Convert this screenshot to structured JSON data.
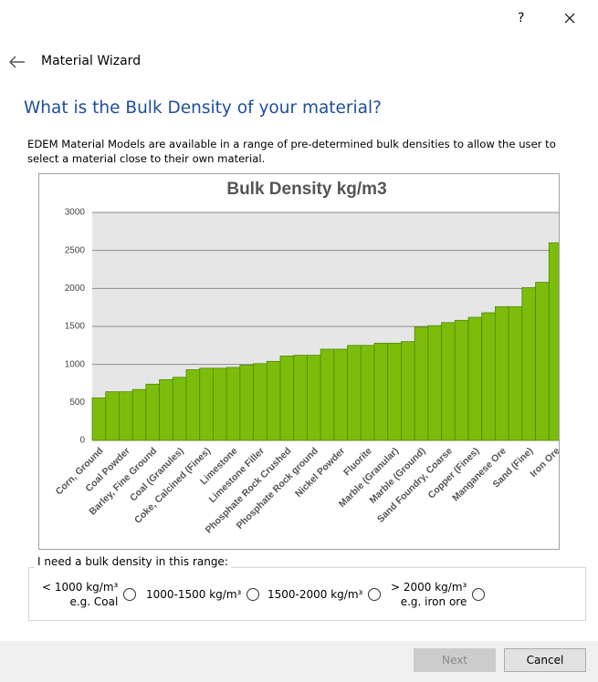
{
  "dialog": {
    "title": "Material Wizard",
    "heading": "What is the Bulk Density of your material?",
    "description": "EDEM Material Models are available in a range of pre-determined bulk densities to allow the user to select a material close to their own material.",
    "range_group": {
      "legend": "I need a bulk density in this range:",
      "options": [
        {
          "lines": [
            "< 1000 kg/m³",
            "e.g. Coal"
          ]
        },
        {
          "lines": [
            "1000-1500 kg/m³"
          ]
        },
        {
          "lines": [
            "1500-2000 kg/m³"
          ]
        },
        {
          "lines": [
            "> 2000 kg/m³",
            "e.g. iron ore"
          ]
        }
      ]
    },
    "buttons": [
      "Next",
      "Cancel"
    ]
  },
  "chart_data": {
    "type": "bar",
    "title": "Bulk Density kg/m3",
    "categories": [
      "Corn, Ground",
      null,
      "Coal Powder",
      null,
      "Barley, Fine Ground",
      null,
      "Coal (Granules)",
      null,
      "Coke, Calcined (Fines)",
      null,
      "Limestone",
      null,
      "Limestone Filler",
      null,
      "Phosphate Rock Crushed",
      null,
      "Phosphate Rock ground",
      null,
      "Nickel Powder",
      null,
      "Fluorite",
      null,
      "Marble (Granular)",
      null,
      "Marble (Ground)",
      null,
      "Sand Foundry, Coarse",
      null,
      "Copper (Fines)",
      null,
      "Manganese Ore",
      null,
      "Sand (Fine)",
      null,
      "Iron Ore"
    ],
    "values": [
      560,
      640,
      640,
      670,
      740,
      800,
      830,
      930,
      950,
      950,
      960,
      990,
      1010,
      1040,
      1110,
      1120,
      1120,
      1200,
      1200,
      1250,
      1250,
      1280,
      1280,
      1300,
      1490,
      1510,
      1550,
      1580,
      1620,
      1680,
      1760,
      1760,
      2010,
      2080,
      2600
    ],
    "color": "#7cbd0c",
    "ylim": [
      0,
      3000
    ],
    "yticks": [
      0,
      500,
      1000,
      1500,
      2000,
      2500,
      3000
    ],
    "grid": true
  }
}
